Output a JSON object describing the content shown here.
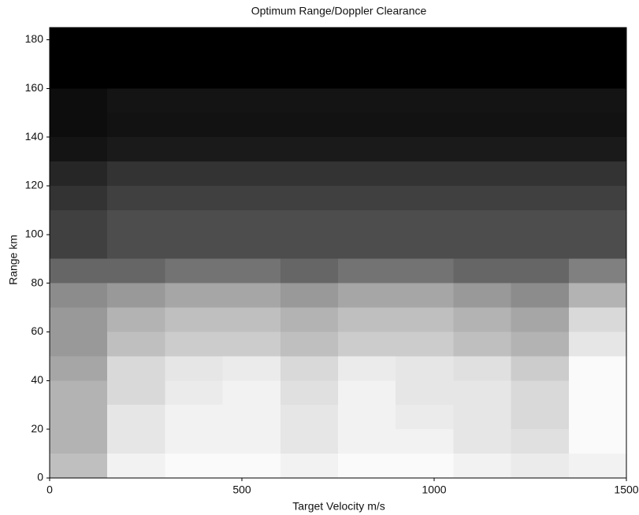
{
  "chart_data": {
    "type": "heatmap",
    "title": "Optimum Range/Doppler Clearance",
    "x_label": "Target Velocity  m/s",
    "y_label": "Range  km",
    "xlim": [
      0,
      1500
    ],
    "ylim": [
      0,
      185
    ],
    "xticks": [
      0,
      500,
      1000,
      1500
    ],
    "yticks": [
      0,
      20,
      40,
      60,
      80,
      100,
      120,
      140,
      160,
      180
    ],
    "xbins": [
      0,
      150,
      300,
      450,
      600,
      750,
      900,
      1050,
      1200,
      1350,
      1500
    ],
    "ybins": [
      0,
      10,
      20,
      30,
      40,
      50,
      60,
      70,
      80,
      90,
      100,
      110,
      120,
      130,
      140,
      150,
      160,
      170,
      180,
      185
    ],
    "low_color": "#ffffff",
    "high_color": "#000000",
    "values": [
      [
        0.25,
        0.05,
        0.02,
        0.02,
        0.05,
        0.02,
        0.02,
        0.05,
        0.08,
        0.05
      ],
      [
        0.3,
        0.1,
        0.05,
        0.05,
        0.1,
        0.05,
        0.05,
        0.1,
        0.12,
        0.02
      ],
      [
        0.3,
        0.1,
        0.05,
        0.05,
        0.1,
        0.05,
        0.08,
        0.1,
        0.15,
        0.02
      ],
      [
        0.3,
        0.15,
        0.08,
        0.05,
        0.12,
        0.05,
        0.1,
        0.1,
        0.15,
        0.02
      ],
      [
        0.35,
        0.15,
        0.1,
        0.08,
        0.15,
        0.08,
        0.1,
        0.12,
        0.2,
        0.02
      ],
      [
        0.4,
        0.25,
        0.2,
        0.2,
        0.25,
        0.2,
        0.2,
        0.25,
        0.3,
        0.1
      ],
      [
        0.4,
        0.3,
        0.25,
        0.25,
        0.3,
        0.25,
        0.25,
        0.3,
        0.35,
        0.15
      ],
      [
        0.45,
        0.4,
        0.35,
        0.35,
        0.4,
        0.35,
        0.35,
        0.4,
        0.45,
        0.3
      ],
      [
        0.6,
        0.6,
        0.55,
        0.55,
        0.6,
        0.55,
        0.55,
        0.6,
        0.6,
        0.5
      ],
      [
        0.75,
        0.7,
        0.7,
        0.7,
        0.7,
        0.7,
        0.7,
        0.7,
        0.7,
        0.7
      ],
      [
        0.75,
        0.7,
        0.7,
        0.7,
        0.7,
        0.7,
        0.7,
        0.7,
        0.7,
        0.7
      ],
      [
        0.8,
        0.75,
        0.75,
        0.75,
        0.75,
        0.75,
        0.75,
        0.75,
        0.75,
        0.75
      ],
      [
        0.85,
        0.8,
        0.8,
        0.8,
        0.8,
        0.8,
        0.8,
        0.8,
        0.8,
        0.8
      ],
      [
        0.92,
        0.9,
        0.9,
        0.9,
        0.9,
        0.9,
        0.9,
        0.9,
        0.9,
        0.9
      ],
      [
        0.95,
        0.93,
        0.93,
        0.93,
        0.93,
        0.93,
        0.93,
        0.93,
        0.93,
        0.93
      ],
      [
        0.95,
        0.92,
        0.92,
        0.92,
        0.92,
        0.92,
        0.92,
        0.92,
        0.92,
        0.92
      ],
      [
        1,
        1,
        1,
        1,
        1,
        1,
        1,
        1,
        1,
        1
      ],
      [
        1,
        1,
        1,
        1,
        1,
        1,
        1,
        1,
        1,
        1
      ],
      [
        1,
        1,
        1,
        1,
        1,
        1,
        1,
        1,
        1,
        1
      ]
    ]
  }
}
